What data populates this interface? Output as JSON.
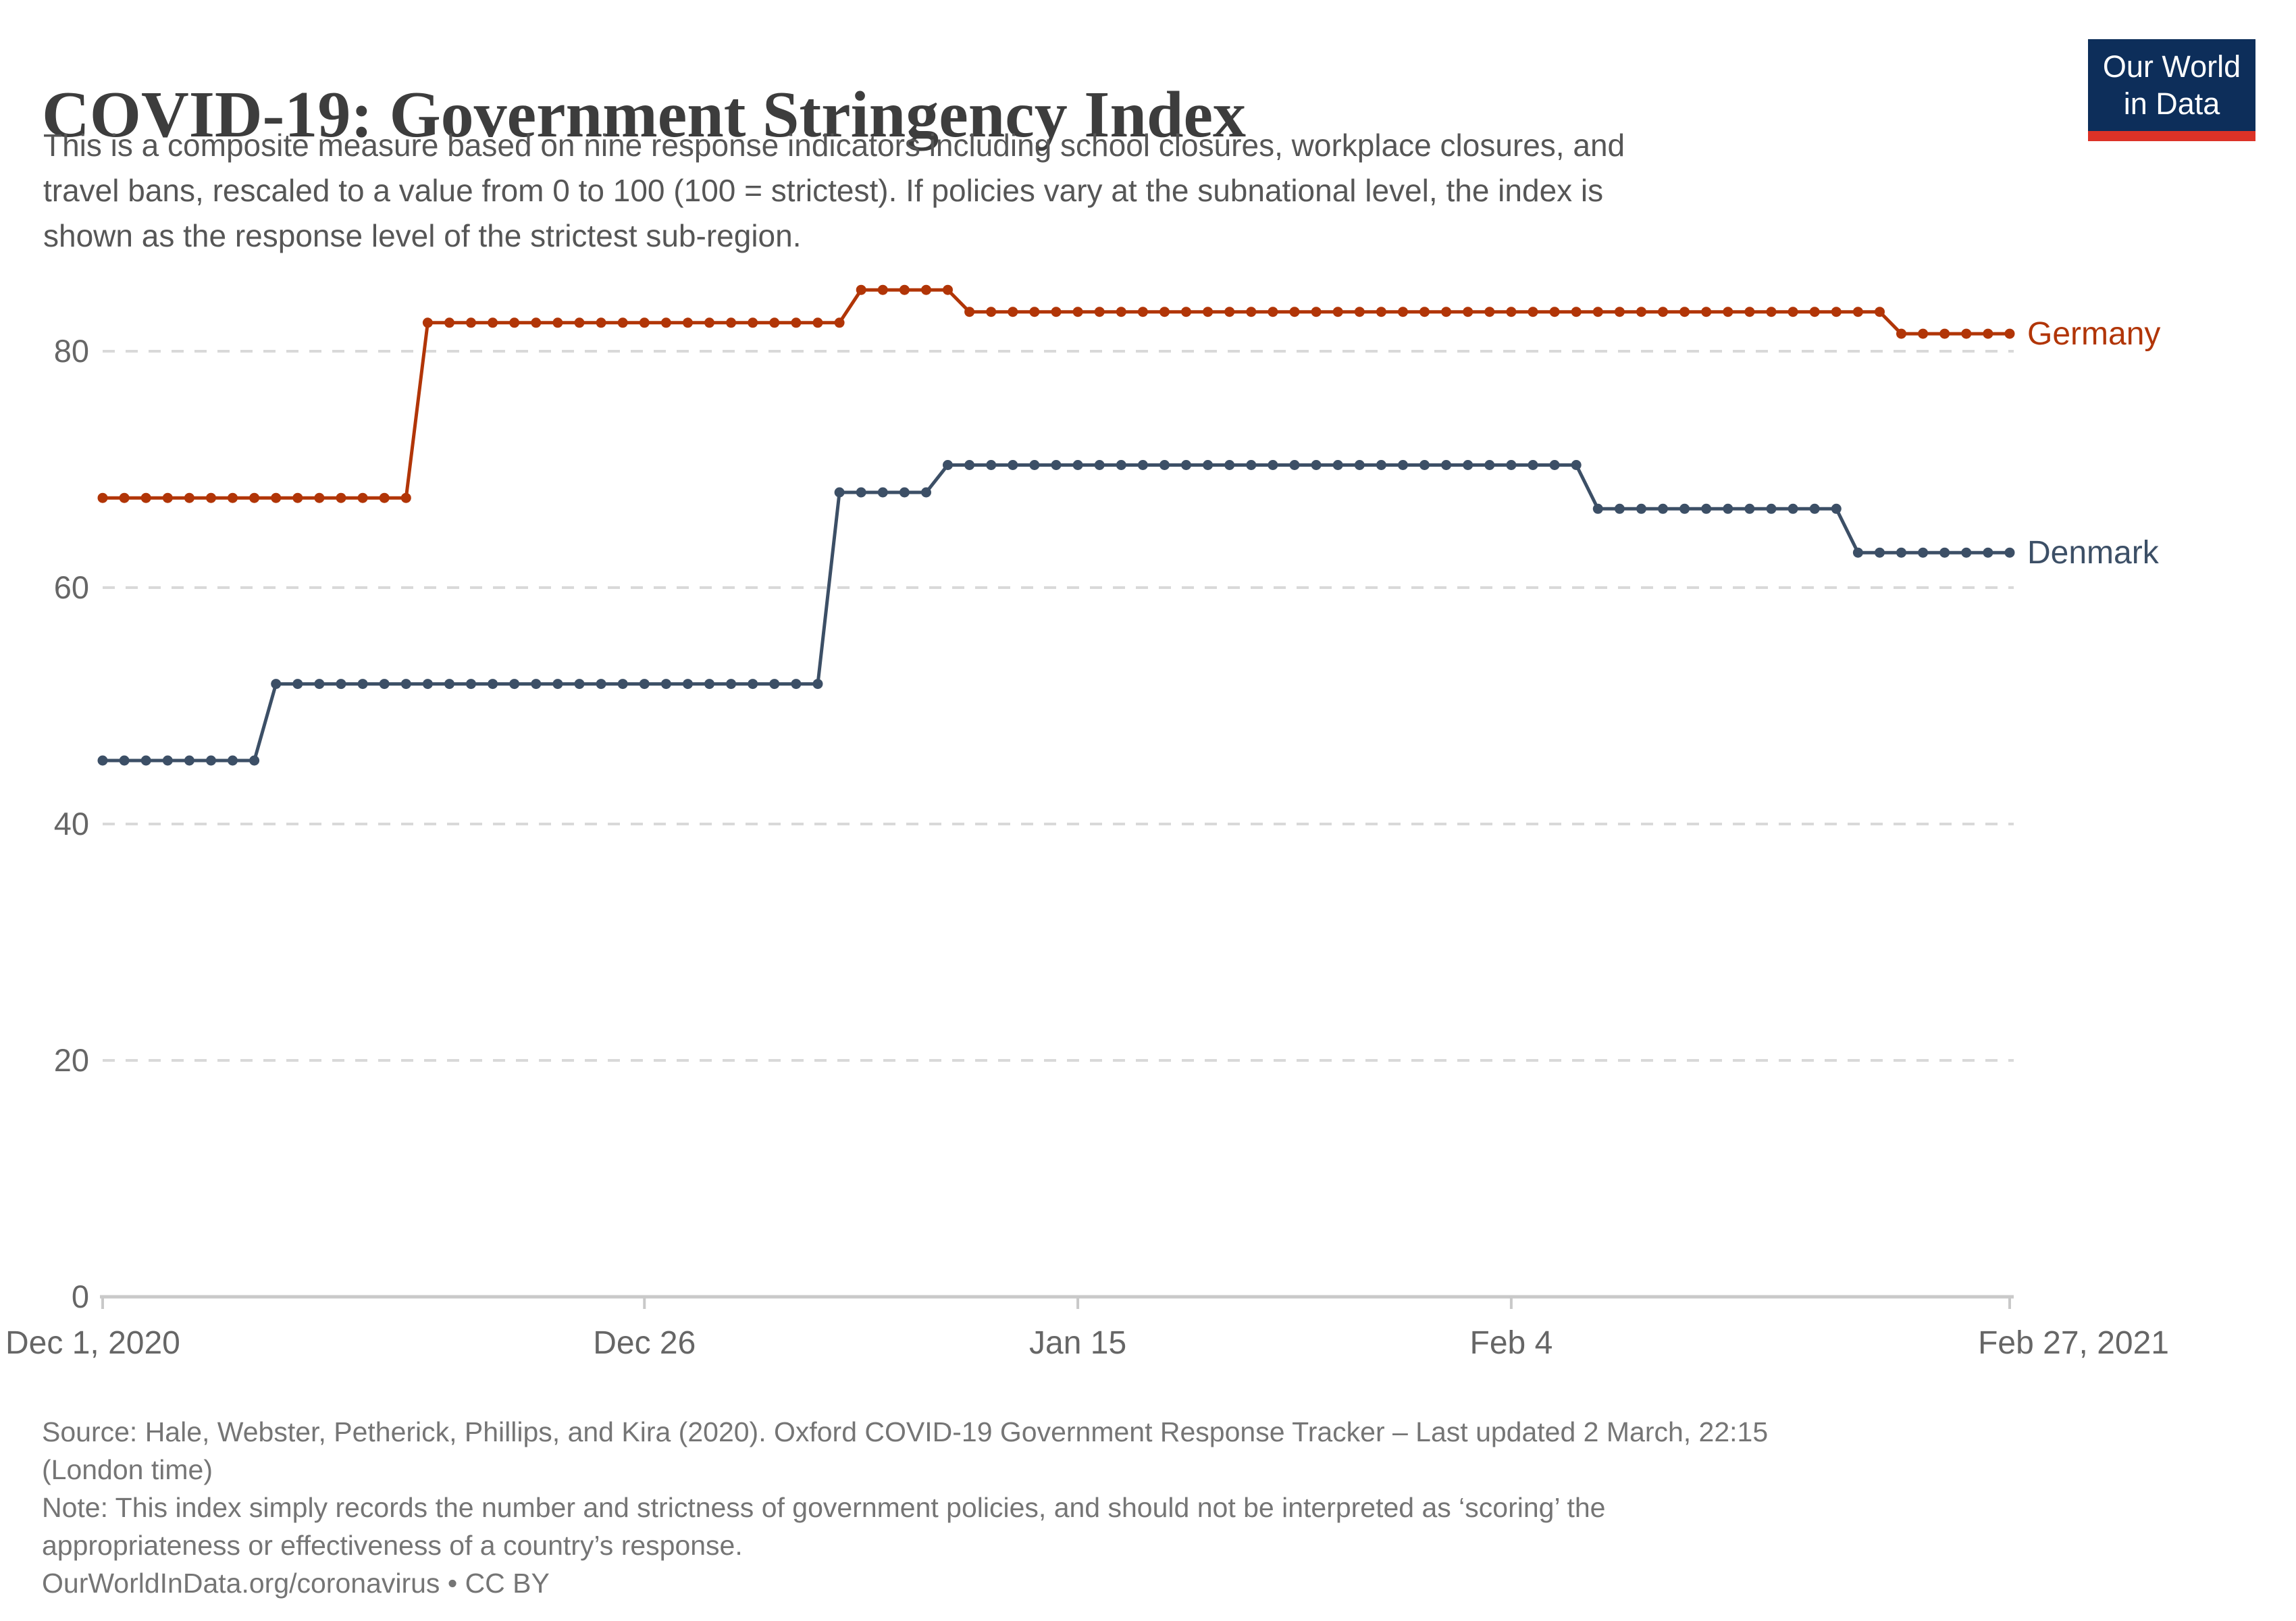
{
  "header": {
    "title": "COVID-19: Government Stringency Index",
    "subtitle_lines": [
      "This is a composite measure based on nine response indicators including school closures, workplace closures, and",
      "travel bans, rescaled to a value from 0 to 100 (100 = strictest). If policies vary at the subnational level, the index is",
      "shown as the response level of the strictest sub-region."
    ]
  },
  "logo": {
    "line1": "Our World",
    "line2": "in Data",
    "bg_color": "#0D2E5A",
    "bar_color": "#DC3227"
  },
  "chart_data": {
    "type": "line",
    "title": "COVID-19: Government Stringency Index",
    "xlabel": "",
    "ylabel": "",
    "x_start_date": "Dec 1, 2020",
    "x_end_date": "Feb 27, 2021",
    "x_days_range": [
      0,
      88
    ],
    "ylim": [
      0,
      100
    ],
    "grid": true,
    "legend_position": "end-of-line",
    "y_ticks": [
      0,
      20,
      40,
      60,
      80
    ],
    "x_ticks": [
      {
        "day": 0,
        "label": "Dec 1, 2020",
        "align": "start"
      },
      {
        "day": 25,
        "label": "Dec 26",
        "align": "middle"
      },
      {
        "day": 45,
        "label": "Jan 15",
        "align": "middle"
      },
      {
        "day": 65,
        "label": "Feb 4",
        "align": "middle"
      },
      {
        "day": 88,
        "label": "Feb 27, 2021",
        "align": "end"
      }
    ],
    "colors": {
      "grid": "#D9D9D9",
      "axis": "#C9C9C9",
      "tick_text": "#666666"
    },
    "series": [
      {
        "name": "Germany",
        "color": "#B13507",
        "segments": [
          {
            "from": "Dec 1, 2020",
            "to": "Dec 15, 2020",
            "from_day": 0,
            "to_day": 14,
            "value": 67.59
          },
          {
            "from": "Dec 16, 2020",
            "to": "Jan 4, 2021",
            "from_day": 15,
            "to_day": 34,
            "value": 82.41
          },
          {
            "from": "Jan 5, 2021",
            "to": "Jan 9, 2021",
            "from_day": 35,
            "to_day": 39,
            "value": 85.19
          },
          {
            "from": "Jan 10, 2021",
            "to": "Feb 21, 2021",
            "from_day": 40,
            "to_day": 82,
            "value": 83.33
          },
          {
            "from": "Feb 22, 2021",
            "to": "Feb 27, 2021",
            "from_day": 83,
            "to_day": 88,
            "value": 81.48
          }
        ]
      },
      {
        "name": "Denmark",
        "color": "#3C4F66",
        "segments": [
          {
            "from": "Dec 1, 2020",
            "to": "Dec 8, 2020",
            "from_day": 0,
            "to_day": 7,
            "value": 45.37
          },
          {
            "from": "Dec 9, 2020",
            "to": "Jan 3, 2021",
            "from_day": 8,
            "to_day": 33,
            "value": 51.85
          },
          {
            "from": "Jan 4, 2021",
            "to": "Jan 8, 2021",
            "from_day": 34,
            "to_day": 38,
            "value": 68.06
          },
          {
            "from": "Jan 9, 2021",
            "to": "Feb 7, 2021",
            "from_day": 39,
            "to_day": 68,
            "value": 70.37
          },
          {
            "from": "Feb 8, 2021",
            "to": "Feb 19, 2021",
            "from_day": 69,
            "to_day": 80,
            "value": 66.67
          },
          {
            "from": "Feb 20, 2021",
            "to": "Feb 27, 2021",
            "from_day": 81,
            "to_day": 88,
            "value": 62.96
          }
        ]
      }
    ]
  },
  "footer": {
    "lines": [
      "Source: Hale, Webster, Petherick, Phillips, and Kira (2020). Oxford COVID-19 Government Response Tracker – Last updated 2 March, 22:15",
      "(London time)",
      "Note: This index simply records the number and strictness of government policies, and should not be interpreted as ‘scoring’ the",
      "appropriateness or effectiveness of a country’s response.",
      "OurWorldInData.org/coronavirus • CC BY"
    ]
  }
}
